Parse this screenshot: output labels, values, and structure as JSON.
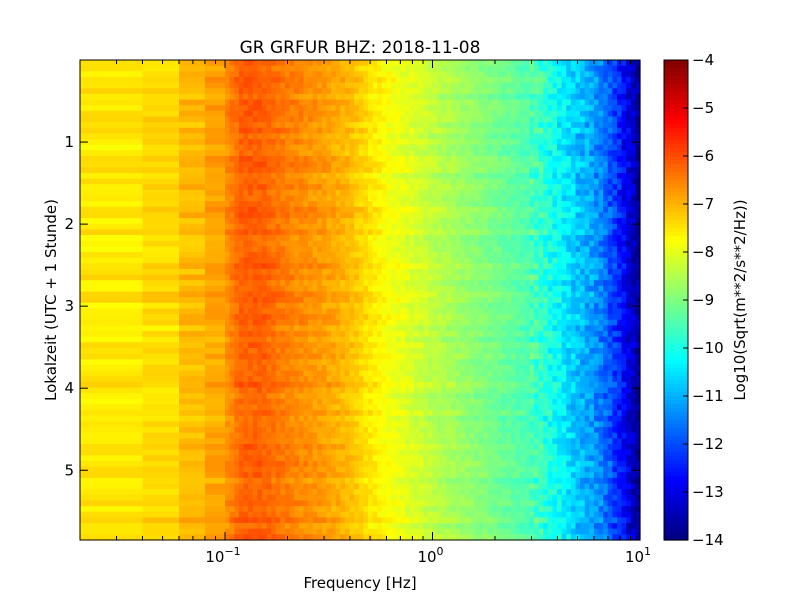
{
  "chart_data": {
    "type": "heatmap",
    "title": "GR GRFUR BHZ: 2018-11-08",
    "xlabel": "Frequency [Hz]",
    "ylabel": "Lokalzeit (UTC + 1 Stunde)",
    "x_scale": "log",
    "xlim": [
      0.02,
      10
    ],
    "x_ticks": [
      {
        "value": 0.1,
        "base": "10",
        "exp": "−1"
      },
      {
        "value": 1,
        "base": "10",
        "exp": "0"
      },
      {
        "value": 10,
        "base": "10",
        "exp": "1"
      }
    ],
    "ylim": [
      0,
      5.85
    ],
    "y_inverted": true,
    "y_ticks": [
      1,
      2,
      3,
      4,
      5
    ],
    "grid": false,
    "colormap": "jet",
    "colorbar": {
      "label": "Log10(Sqrt(m**2/s**2/Hz))",
      "range": [
        -14,
        -4
      ],
      "ticks": [
        -4,
        -5,
        -6,
        -7,
        -8,
        -9,
        -10,
        -11,
        -12,
        -13,
        -14
      ]
    },
    "frequencies": [
      0.02,
      0.04,
      0.06,
      0.08,
      0.1,
      0.12,
      0.15,
      0.2,
      0.3,
      0.4,
      0.5,
      0.6,
      0.8,
      1,
      1.5,
      2,
      3,
      4,
      5,
      6,
      7,
      8,
      9,
      10
    ],
    "typical_spectrum": [
      -7.5,
      -7.6,
      -7.2,
      -7.0,
      -6.7,
      -6.2,
      -6.2,
      -6.5,
      -6.8,
      -7.1,
      -7.5,
      -7.8,
      -8.1,
      -8.4,
      -8.8,
      -9.1,
      -9.5,
      -10.2,
      -10.8,
      -11.2,
      -11.8,
      -12.5,
      -13.2,
      -13.8
    ],
    "time_range_hours": [
      0,
      5.85
    ],
    "time_rows": 85
  }
}
